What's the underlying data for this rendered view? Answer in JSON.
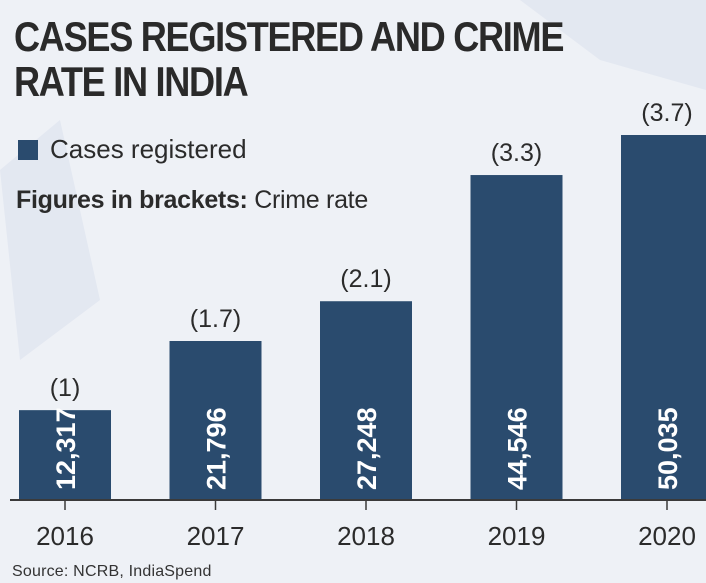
{
  "title": "CASES REGISTERED AND CRIME RATE IN INDIA",
  "legend_label": "Cases registered",
  "note_bold": "Figures in brackets:",
  "note_rest": "Crime rate",
  "source": "Source: NCRB, IndiaSpend",
  "colors": {
    "bar": "#2a4b6e",
    "text": "#2b2b2b",
    "axis": "#3a3a3a",
    "background": "#eef1f6",
    "watermark": "#dfe5ef"
  },
  "chart_data": {
    "type": "bar",
    "title": "CASES REGISTERED AND CRIME RATE IN INDIA",
    "categories": [
      "2016",
      "2017",
      "2018",
      "2019",
      "2020"
    ],
    "series": [
      {
        "name": "Cases registered",
        "values": [
          12317,
          21796,
          27248,
          44546,
          50035
        ],
        "value_labels": [
          "12,317",
          "21,796",
          "27,248",
          "44,546",
          "50,035"
        ]
      }
    ],
    "crime_rate": [
      1,
      1.7,
      2.1,
      3.3,
      3.7
    ],
    "crime_rate_labels": [
      "(1)",
      "(1.7)",
      "(2.1)",
      "(3.3)",
      "(3.7)"
    ],
    "xlabel": "",
    "ylabel": "",
    "grid": false,
    "legend": "top-left"
  }
}
